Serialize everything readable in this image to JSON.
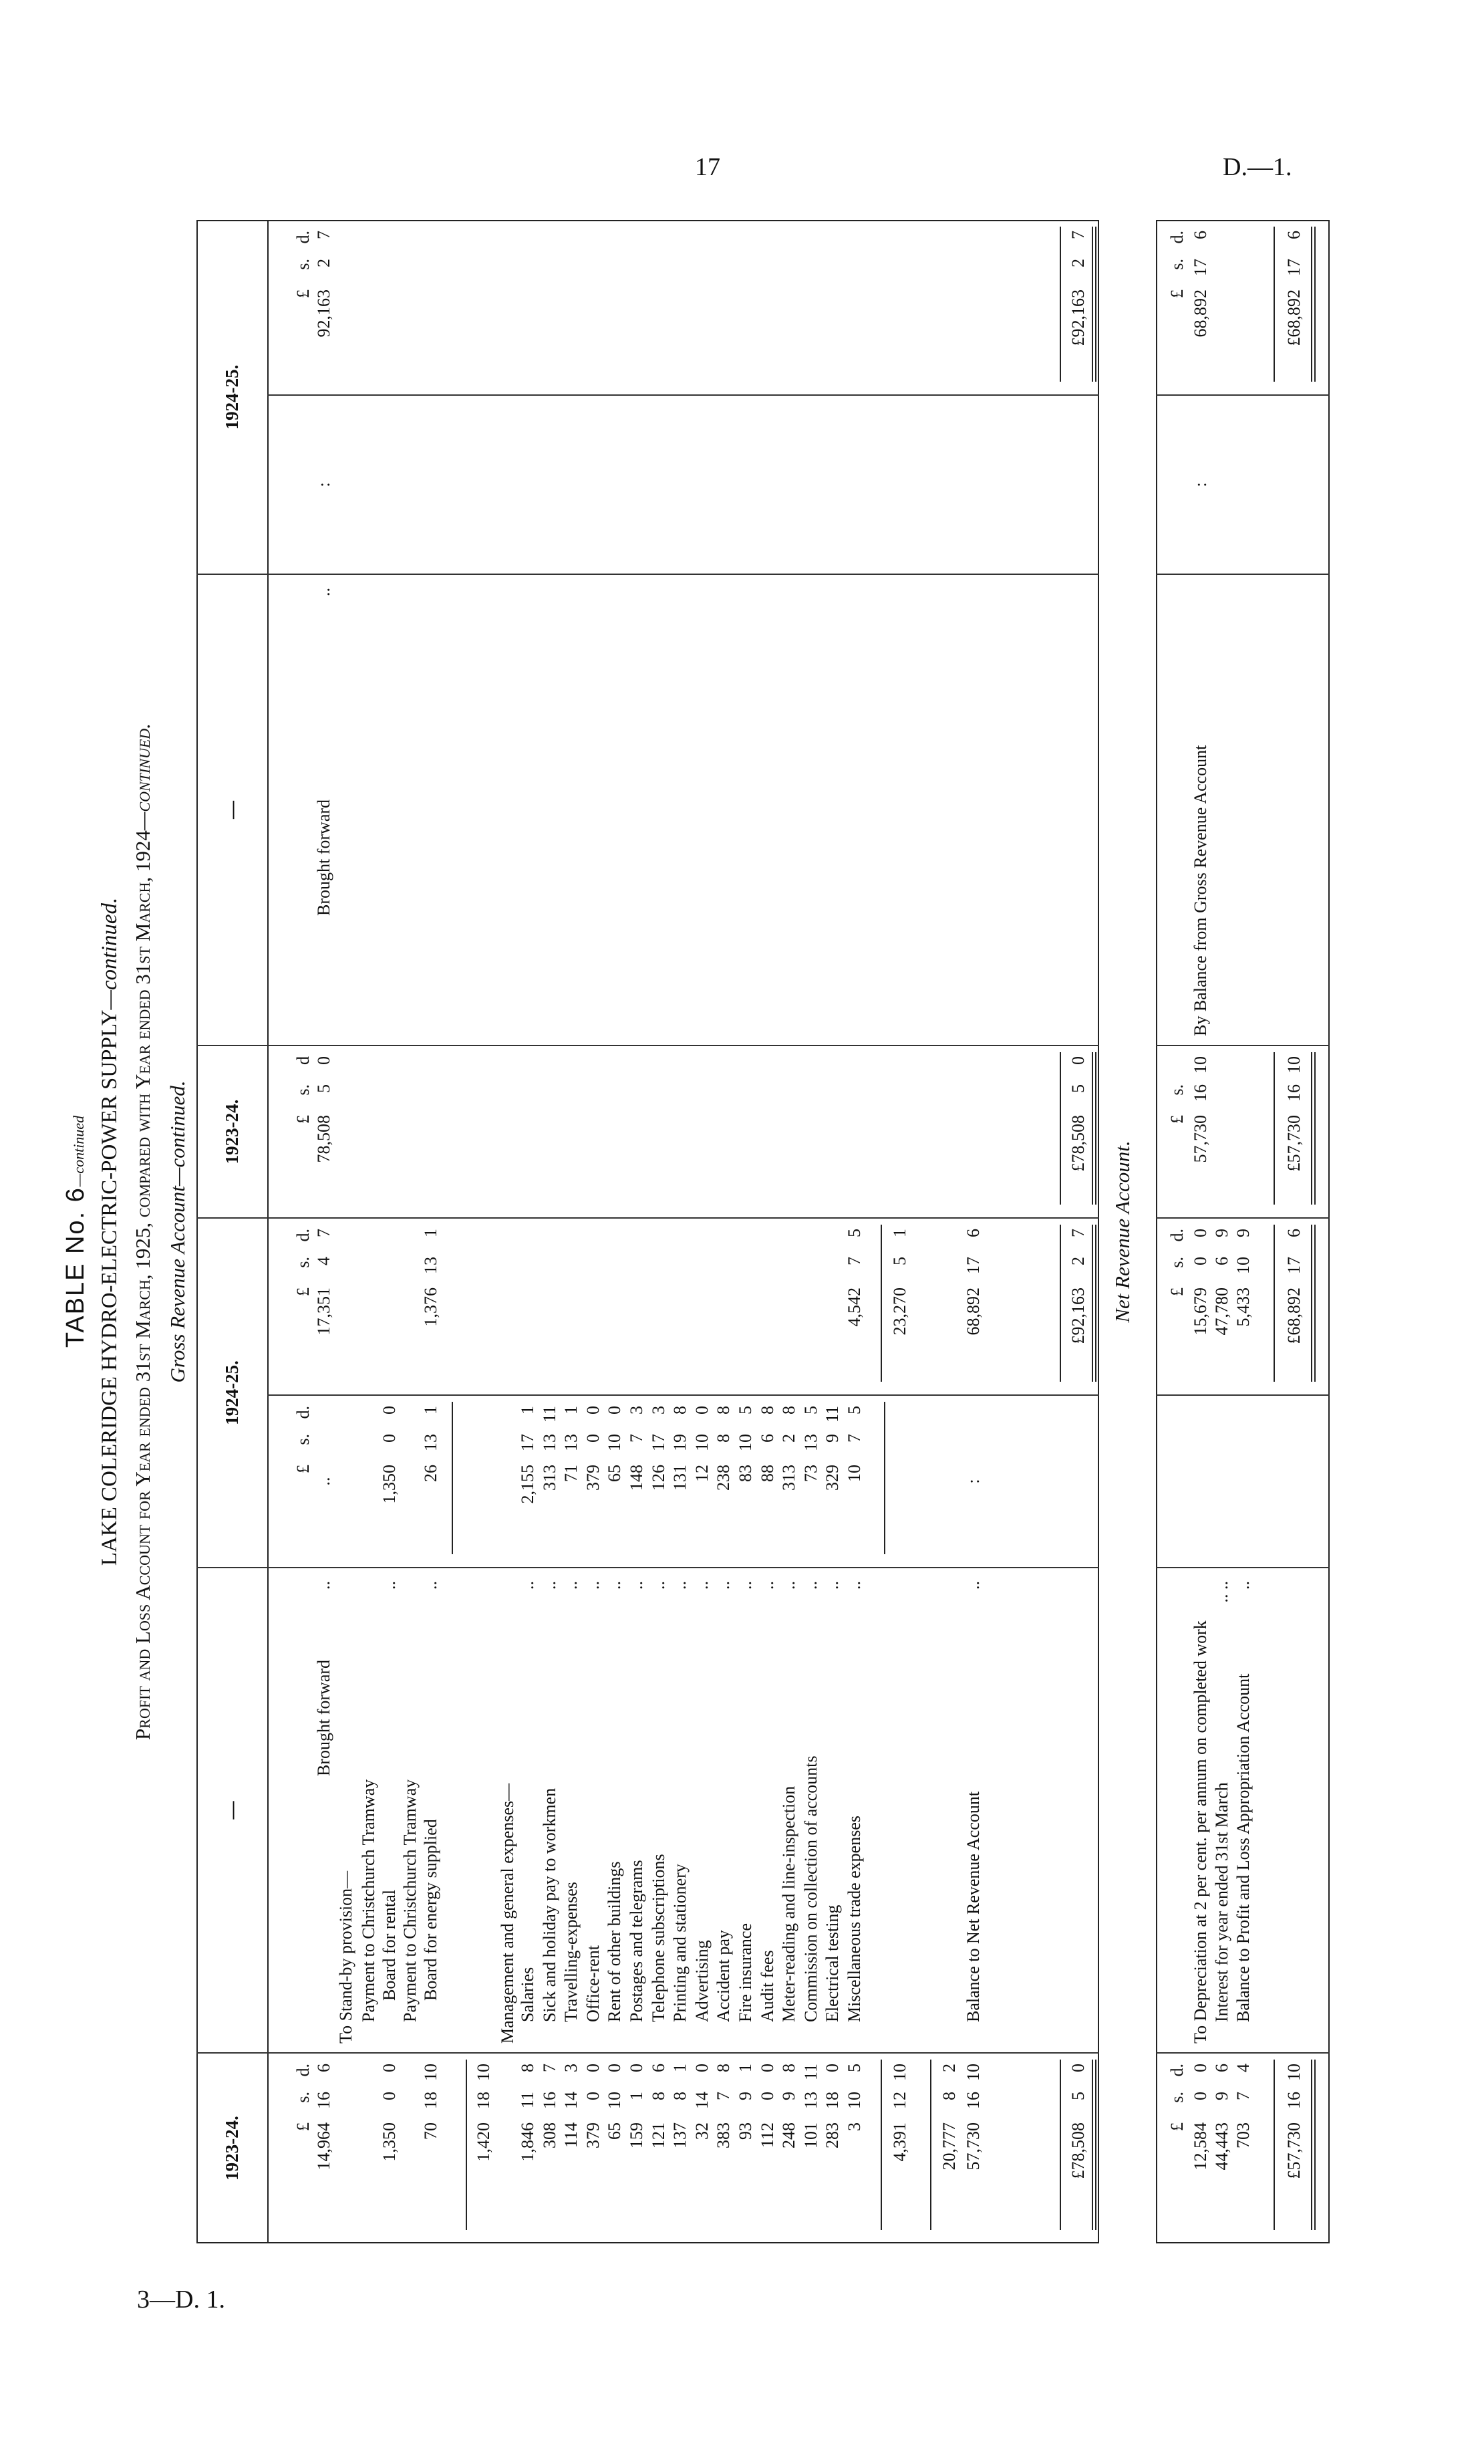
{
  "page": {
    "number": "17",
    "ref": "D.—1.",
    "signature": "3—D. 1."
  },
  "titles": {
    "table_no": "TABLE No. 6",
    "table_no_suffix": "—continued",
    "main": "LAKE COLERIDGE HYDRO-ELECTRIC-POWER SUPPLY",
    "main_suffix": "—continued.",
    "sub": "Profit and Loss Account for Year ended 31st March, 1925, compared with Year ended 31st March, 1924",
    "sub_suffix": "—continued.",
    "section": "Gross Revenue Account—continued.",
    "net_section": "Net Revenue Account."
  },
  "headers": [
    "1923-24.",
    "—",
    "1924-25.",
    "1923-24.",
    "—",
    "1924-25."
  ],
  "gross": {
    "debit": [
      {
        "c1": [
          "£",
          "s.",
          "d."
        ],
        "c3": [
          "£",
          "s.",
          "d."
        ],
        "c4": [
          "£",
          "s.",
          "d."
        ]
      },
      {
        "label": "Brought forward",
        "indent": "c",
        "dots": "..",
        "c1": [
          "14,964",
          "16",
          "6"
        ],
        "c3": "..",
        "c4": [
          "17,351",
          "4",
          "7"
        ]
      },
      {
        "label": "To Stand-by provision—",
        "indent": 0
      },
      {
        "label": "Payment to Christchurch Tramway",
        "indent": 1
      },
      {
        "label": "Board for rental",
        "indent": 2,
        "dots": "..",
        "c1": [
          "1,350",
          "0",
          "0"
        ],
        "c3": [
          "1,350",
          "0",
          "0"
        ]
      },
      {
        "label": "Payment to Christchurch Tramway",
        "indent": 1
      },
      {
        "label": "Board for energy supplied",
        "indent": 2,
        "dots": "..",
        "c1": [
          "70",
          "18",
          "10"
        ],
        "c3": [
          "26",
          "13",
          "1"
        ],
        "c4": [
          "1,376",
          "13",
          "1"
        ]
      },
      {
        "c1": [
          "1,420",
          "18",
          "10"
        ]
      },
      {
        "label": "Management and general expenses—",
        "indent": 0
      },
      {
        "label": "Salaries",
        "indent": 1,
        "dots": "..",
        "c1": [
          "1,846",
          "11",
          "8"
        ],
        "c3": [
          "2,155",
          "17",
          "1"
        ]
      },
      {
        "label": "Sick and holiday pay to workmen",
        "indent": 1,
        "dots": "..",
        "c1": [
          "308",
          "16",
          "7"
        ],
        "c3": [
          "313",
          "13",
          "11"
        ]
      },
      {
        "label": "Travelling-expenses",
        "indent": 1,
        "dots": "..",
        "c1": [
          "114",
          "14",
          "3"
        ],
        "c3": [
          "71",
          "13",
          "1"
        ]
      },
      {
        "label": "Office-rent",
        "indent": 1,
        "dots": "..",
        "c1": [
          "379",
          "0",
          "0"
        ],
        "c3": [
          "379",
          "0",
          "0"
        ]
      },
      {
        "label": "Rent of other buildings",
        "indent": 1,
        "dots": "..",
        "c1": [
          "65",
          "10",
          "0"
        ],
        "c3": [
          "65",
          "10",
          "0"
        ]
      },
      {
        "label": "Postages and telegrams",
        "indent": 1,
        "dots": "..",
        "c1": [
          "159",
          "1",
          "0"
        ],
        "c3": [
          "148",
          "7",
          "3"
        ]
      },
      {
        "label": "Telephone subscriptions",
        "indent": 1,
        "dots": "..",
        "c1": [
          "121",
          "8",
          "6"
        ],
        "c3": [
          "126",
          "17",
          "3"
        ]
      },
      {
        "label": "Printing and stationery",
        "indent": 1,
        "dots": "..",
        "c1": [
          "137",
          "8",
          "1"
        ],
        "c3": [
          "131",
          "19",
          "8"
        ]
      },
      {
        "label": "Advertising",
        "indent": 1,
        "dots": "..",
        "c1": [
          "32",
          "14",
          "0"
        ],
        "c3": [
          "12",
          "10",
          "0"
        ]
      },
      {
        "label": "Accident pay",
        "indent": 1,
        "dots": "..",
        "c1": [
          "383",
          "7",
          "8"
        ],
        "c3": [
          "238",
          "8",
          "8"
        ]
      },
      {
        "label": "Fire insurance",
        "indent": 1,
        "dots": "..",
        "c1": [
          "93",
          "9",
          "1"
        ],
        "c3": [
          "83",
          "10",
          "5"
        ]
      },
      {
        "label": "Audit fees",
        "indent": 1,
        "dots": "..",
        "c1": [
          "112",
          "0",
          "0"
        ],
        "c3": [
          "88",
          "6",
          "8"
        ]
      },
      {
        "label": "Meter-reading and line-inspection",
        "indent": 1,
        "dots": "..",
        "c1": [
          "248",
          "9",
          "8"
        ],
        "c3": [
          "313",
          "2",
          "8"
        ]
      },
      {
        "label": "Commission on collection of accounts",
        "indent": 1,
        "dots": "..",
        "c1": [
          "101",
          "13",
          "11"
        ],
        "c3": [
          "73",
          "13",
          "5"
        ]
      },
      {
        "label": "Electrical testing",
        "indent": 1,
        "dots": "..",
        "c1": [
          "283",
          "18",
          "0"
        ],
        "c3": [
          "329",
          "9",
          "11"
        ]
      },
      {
        "label": "Miscellaneous trade expenses",
        "indent": 1,
        "dots": "..",
        "c1": [
          "3",
          "10",
          "5"
        ],
        "c3": [
          "10",
          "7",
          "5"
        ],
        "c4": [
          "4,542",
          "7",
          "5"
        ]
      },
      {
        "c1": [
          "4,391",
          "12",
          "10"
        ],
        "c4": [
          "23,270",
          "5",
          "1"
        ]
      },
      {
        "c1": [
          "20,777",
          "8",
          "2"
        ]
      },
      {
        "label": "Balance to Net Revenue Account",
        "indent": 1,
        "dots": "..",
        "c1": [
          "57,730",
          "16",
          "10"
        ],
        "c3": ":",
        "c4": [
          "68,892",
          "17",
          "6"
        ]
      },
      {
        "c1": [
          "£78,508",
          "5",
          "0"
        ],
        "c4": [
          "£92,163",
          "2",
          "7"
        ]
      }
    ],
    "credit": [
      {
        "c5": [
          "£",
          "s.",
          "d"
        ],
        "c8": [
          "£",
          "s.",
          "d."
        ]
      },
      {
        "label": "Brought forward",
        "indent": "c",
        "dots": "..",
        "c5": [
          "78,508",
          "5",
          "0"
        ],
        "c7": ":",
        "c8": [
          "92,163",
          "2",
          "7"
        ]
      },
      {
        "c5": [
          "£78,508",
          "5",
          "0"
        ],
        "c8": [
          "£92,163",
          "2",
          "7"
        ]
      }
    ]
  },
  "net": {
    "debit": [
      {
        "c1": [
          "£",
          "s.",
          "d."
        ],
        "c4": [
          "£",
          "s.",
          "d."
        ]
      },
      {
        "label": "To Depreciation at 2 per cent. per annum on completed work",
        "indent": 0,
        "c1": [
          "12,584",
          "0",
          "0"
        ],
        "c4": [
          "15,679",
          "0",
          "0"
        ]
      },
      {
        "label": "Interest for year ended 31st March",
        "indent": 1,
        "dots": "..   ..",
        "c1": [
          "44,443",
          "9",
          "6"
        ],
        "c4": [
          "47,780",
          "6",
          "9"
        ]
      },
      {
        "label": "Balance to Profit and Loss Appropriation Account",
        "indent": 1,
        "dots": "..",
        "c1": [
          "703",
          "7",
          "4"
        ],
        "c4": [
          "5,433",
          "10",
          "9"
        ]
      },
      {
        "c1": [
          "£57,730",
          "16",
          "10"
        ],
        "c4": [
          "£68,892",
          "17",
          "6"
        ]
      }
    ],
    "credit": [
      {
        "c5": [
          "£",
          "s.",
          ""
        ],
        "c8": [
          "£",
          "s.",
          "d."
        ]
      },
      {
        "label": "By Balance from Gross Revenue Account",
        "indent": 0,
        "c5": [
          "57,730",
          "16",
          "10"
        ],
        "c7": ":",
        "c8": [
          "68,892",
          "17",
          "6"
        ]
      },
      {
        "c5": [
          "£57,730",
          "16",
          "10"
        ],
        "c8": [
          "£68,892",
          "17",
          "6"
        ]
      }
    ]
  }
}
